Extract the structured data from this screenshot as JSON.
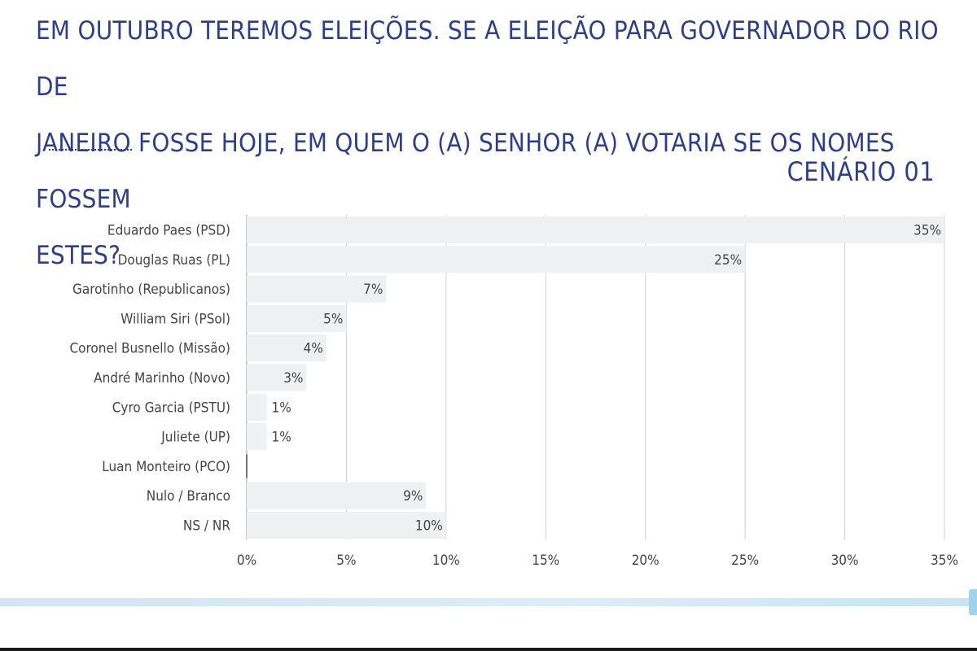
{
  "question_lines": [
    "EM OUTUBRO TEREMOS ELEIÇÕES. SE A ELEIÇÃO PARA GOVERNADOR DO RIO DE",
    "JANEIRO FOSSE HOJE, EM QUEM O (A) SENHOR (A) VOTARIA SE OS NOMES FOSSEM",
    "ESTES?"
  ],
  "scenario_label": "CENÁRIO 01",
  "colors": {
    "title": "#2d3e8c",
    "bar": "#eef0f1",
    "gridline": "#cfcfcf",
    "label": "#444444",
    "band": "#d6ecf6"
  },
  "chart_data": {
    "type": "bar",
    "orientation": "horizontal",
    "categories": [
      "Eduardo Paes (PSD)",
      "Douglas Ruas (PL)",
      "Garotinho (Republicanos)",
      "William Siri (PSol)",
      "Coronel Busnello (Missão)",
      "André Marinho (Novo)",
      "Cyro Garcia (PSTU)",
      "Juliete (UP)",
      "Luan Monteiro (PCO)",
      "Nulo / Branco",
      "NS / NR"
    ],
    "values": [
      35,
      25,
      7,
      5,
      4,
      3,
      1,
      1,
      0,
      9,
      10
    ],
    "data_labels": [
      "35%",
      "25%",
      "7%",
      "5%",
      "4%",
      "3%",
      "1%",
      "1%",
      "",
      "9%",
      "10%"
    ],
    "x_ticks": [
      0,
      5,
      10,
      15,
      20,
      25,
      30,
      35
    ],
    "x_tick_labels": [
      "0%",
      "5%",
      "10%",
      "15%",
      "20%",
      "25%",
      "30%",
      "35%"
    ],
    "xlim": [
      0,
      35
    ],
    "grid": true,
    "legend": "none"
  }
}
